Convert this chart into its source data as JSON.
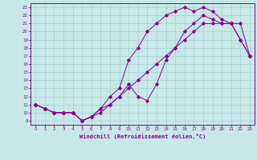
{
  "xlabel": "Windchill (Refroidissement éolien,°C)",
  "bg_color": "#c8e8e8",
  "grid_color": "#aad4d4",
  "line_color": "#880088",
  "xlim": [
    -0.5,
    23.5
  ],
  "ylim": [
    8.5,
    23.5
  ],
  "xticks": [
    0,
    1,
    2,
    3,
    4,
    5,
    6,
    7,
    8,
    9,
    10,
    11,
    12,
    13,
    14,
    15,
    16,
    17,
    18,
    19,
    20,
    21,
    22,
    23
  ],
  "yticks": [
    9,
    10,
    11,
    12,
    13,
    14,
    15,
    16,
    17,
    18,
    19,
    20,
    21,
    22,
    23
  ],
  "line1_x": [
    0,
    1,
    2,
    3,
    4,
    5,
    6,
    7,
    8,
    9,
    10,
    11,
    12,
    13,
    14,
    15,
    16,
    17,
    18,
    19,
    20,
    21,
    22,
    23
  ],
  "line1_y": [
    11,
    10.5,
    10,
    10,
    10,
    9,
    9.5,
    10.5,
    11,
    12,
    13.5,
    12,
    11.5,
    13.5,
    16.5,
    18,
    20,
    21,
    22,
    21.5,
    21,
    21,
    19,
    17
  ],
  "line2_x": [
    0,
    1,
    2,
    3,
    4,
    5,
    6,
    7,
    8,
    9,
    10,
    11,
    12,
    13,
    14,
    15,
    16,
    17,
    18,
    19,
    20,
    21,
    22,
    23
  ],
  "line2_y": [
    11,
    10.5,
    10,
    10,
    10,
    9,
    9.5,
    10,
    11,
    12,
    13,
    14,
    15,
    16,
    17,
    18,
    19,
    20,
    21,
    21,
    21,
    21,
    21,
    17
  ],
  "line3_x": [
    0,
    1,
    2,
    3,
    4,
    5,
    6,
    7,
    8,
    9,
    10,
    11,
    12,
    13,
    14,
    15,
    16,
    17,
    18,
    19,
    20,
    21,
    22,
    23
  ],
  "line3_y": [
    11,
    10.5,
    10,
    10,
    10,
    9,
    9.5,
    10.5,
    12,
    13,
    16.5,
    18,
    20,
    21,
    22,
    22.5,
    23,
    22.5,
    23,
    22.5,
    21.5,
    21,
    19,
    17
  ]
}
